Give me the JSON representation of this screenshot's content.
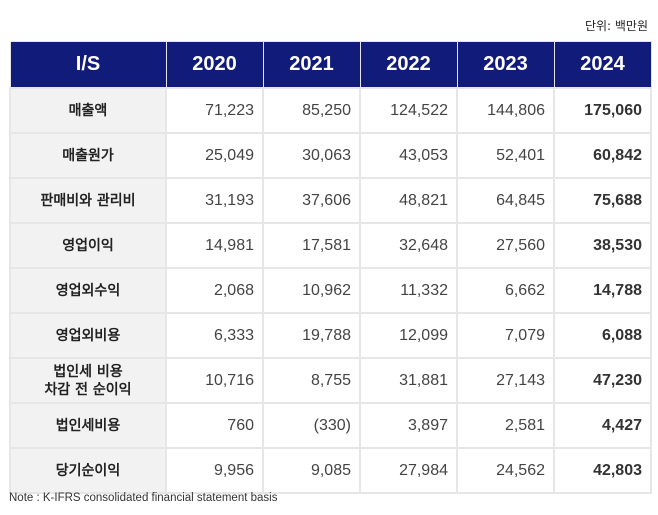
{
  "unit": "단위: 백만원",
  "table": {
    "headers": [
      "I/S",
      "2020",
      "2021",
      "2022",
      "2023",
      "2024"
    ],
    "rows": [
      {
        "label": "매출액",
        "values": [
          "71,223",
          "85,250",
          "124,522",
          "144,806",
          "175,060"
        ]
      },
      {
        "label": "매출원가",
        "values": [
          "25,049",
          "30,063",
          "43,053",
          "52,401",
          "60,842"
        ]
      },
      {
        "label": "판매비와 관리비",
        "values": [
          "31,193",
          "37,606",
          "48,821",
          "64,845",
          "75,688"
        ]
      },
      {
        "label": "영업이익",
        "values": [
          "14,981",
          "17,581",
          "32,648",
          "27,560",
          "38,530"
        ]
      },
      {
        "label": "영업외수익",
        "values": [
          "2,068",
          "10,962",
          "11,332",
          "6,662",
          "14,788"
        ]
      },
      {
        "label": "영업외비용",
        "values": [
          "6,333",
          "19,788",
          "12,099",
          "7,079",
          "6,088"
        ]
      },
      {
        "label": "법인세 비용\n차감 전 순이익",
        "values": [
          "10,716",
          "8,755",
          "31,881",
          "27,143",
          "47,230"
        ]
      },
      {
        "label": "법인세비용",
        "values": [
          "760",
          "(330)",
          "3,897",
          "2,581",
          "4,427"
        ]
      },
      {
        "label": "당기순이익",
        "values": [
          "9,956",
          "9,085",
          "27,984",
          "24,562",
          "42,803"
        ]
      }
    ]
  },
  "note": "Note : K-IFRS consolidated financial statement basis",
  "colors": {
    "header_bg": "#111b7a",
    "label_bg": "#f2f2f2"
  }
}
